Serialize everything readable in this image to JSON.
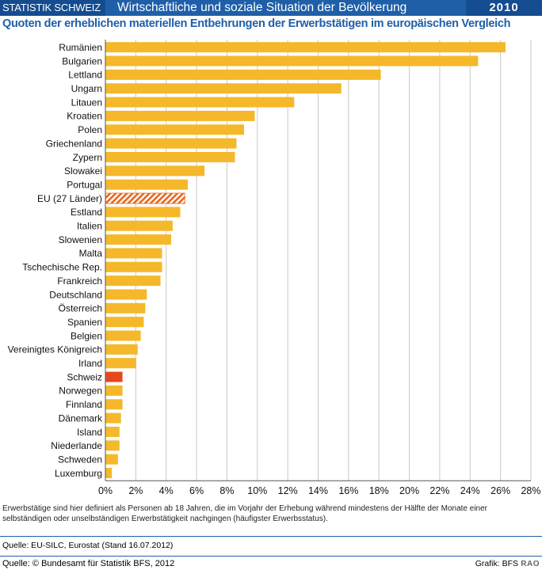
{
  "header": {
    "org": "STATISTIK SCHWEIZ",
    "theme": "Wirtschaftliche und soziale Situation der Bevölkerung",
    "year": "2010"
  },
  "subtitle": "Quoten der erheblichen materiellen Entbehrungen der Erwerbstätigen im europäischen Vergleich",
  "note": "Erwerbstätige sind hier definiert als Personen ab 18 Jahren, die im Vorjahr der Erhebung während mindestens der Hälfte der Monate einer selbständigen oder unselbständigen Erwerbstätigkeit nachgingen (häufigster Erwerbsstatus).",
  "source": "Quelle: EU-SILC, Eurostat (Stand 16.07.2012)",
  "footer": {
    "copyright": "Quelle: © Bundesamt für Statistik BFS, 2012",
    "credit": "Grafik: BFS",
    "code": "RAO"
  },
  "colors": {
    "bar": "#f5b82a",
    "highlight": "#e8471e",
    "eu_hatch": "#e8661c",
    "brand": "#1f5fa8"
  },
  "chart_data": {
    "type": "bar",
    "orientation": "horizontal",
    "categories": [
      "Rumänien",
      "Bulgarien",
      "Lettland",
      "Ungarn",
      "Litauen",
      "Kroatien",
      "Polen",
      "Griechenland",
      "Zypern",
      "Slowakei",
      "Portugal",
      "EU (27 Länder)",
      "Estland",
      "Italien",
      "Slowenien",
      "Malta",
      "Tschechische Rep.",
      "Frankreich",
      "Deutschland",
      "Österreich",
      "Spanien",
      "Belgien",
      "Vereinigtes Königreich",
      "Irland",
      "Schweiz",
      "Norwegen",
      "Finnland",
      "Dänemark",
      "Island",
      "Niederlande",
      "Schweden",
      "Luxemburg"
    ],
    "values": [
      26.3,
      24.5,
      18.1,
      15.5,
      12.4,
      9.8,
      9.1,
      8.6,
      8.5,
      6.5,
      5.4,
      5.2,
      4.9,
      4.4,
      4.3,
      3.7,
      3.7,
      3.6,
      2.7,
      2.6,
      2.5,
      2.3,
      2.1,
      2.0,
      1.1,
      1.1,
      1.1,
      1.0,
      0.9,
      0.9,
      0.8,
      0.4
    ],
    "highlight": [
      "Schweiz"
    ],
    "hatched": [
      "EU (27 Länder)"
    ],
    "xlim": [
      0,
      28
    ],
    "xticks": [
      "0%",
      "2%",
      "4%",
      "6%",
      "8%",
      "10%",
      "12%",
      "14%",
      "16%",
      "18%",
      "20%",
      "22%",
      "24%",
      "26%",
      "28%"
    ],
    "grid": true
  }
}
